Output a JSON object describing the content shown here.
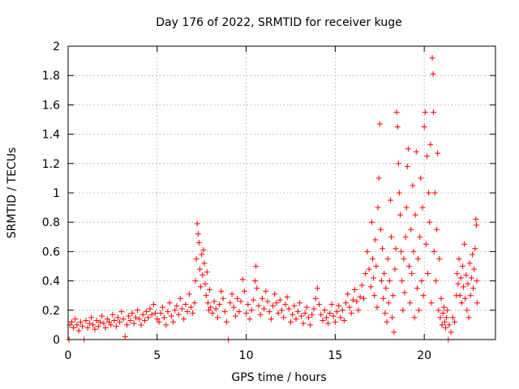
{
  "chart_data": {
    "type": "scatter",
    "title": "Day 176 of 2022, SRMTID for receiver kuge",
    "xlabel": "GPS time / hours",
    "ylabel": "SRMTID / TECUs",
    "xlim": [
      0,
      24
    ],
    "ylim": [
      0,
      2
    ],
    "xticks": [
      0,
      5,
      10,
      15,
      20
    ],
    "xtick_labels": [
      "0",
      "5",
      "10",
      "15",
      "20"
    ],
    "yticks": [
      0,
      0.2,
      0.4,
      0.6,
      0.8,
      1,
      1.2,
      1.4,
      1.6,
      1.8,
      2
    ],
    "ytick_labels": [
      "0",
      "0.2",
      "0.4",
      "0.6",
      "0.8",
      "1",
      "1.2",
      "1.4",
      "1.6",
      "1.8",
      "2"
    ],
    "grid": true,
    "marker": "+",
    "series": [
      {
        "name": "SRMTID",
        "color": "#ff0000",
        "points": [
          [
            0.05,
            0.0
          ],
          [
            0.1,
            0.1
          ],
          [
            0.2,
            0.12
          ],
          [
            0.3,
            0.08
          ],
          [
            0.4,
            0.14
          ],
          [
            0.5,
            0.1
          ],
          [
            0.6,
            0.06
          ],
          [
            0.7,
            0.12
          ],
          [
            0.8,
            0.09
          ],
          [
            0.9,
            0.0
          ],
          [
            1.0,
            0.13
          ],
          [
            1.1,
            0.08
          ],
          [
            1.2,
            0.11
          ],
          [
            1.3,
            0.15
          ],
          [
            1.4,
            0.1
          ],
          [
            1.5,
            0.07
          ],
          [
            1.6,
            0.13
          ],
          [
            1.7,
            0.09
          ],
          [
            1.8,
            0.12
          ],
          [
            1.9,
            0.16
          ],
          [
            2.0,
            0.11
          ],
          [
            2.1,
            0.08
          ],
          [
            2.2,
            0.14
          ],
          [
            2.3,
            0.12
          ],
          [
            2.4,
            0.1
          ],
          [
            2.5,
            0.17
          ],
          [
            2.6,
            0.13
          ],
          [
            2.7,
            0.09
          ],
          [
            2.8,
            0.15
          ],
          [
            2.9,
            0.12
          ],
          [
            3.0,
            0.19
          ],
          [
            3.1,
            0.14
          ],
          [
            3.2,
            0.02
          ],
          [
            3.3,
            0.1
          ],
          [
            3.4,
            0.16
          ],
          [
            3.5,
            0.13
          ],
          [
            3.6,
            0.18
          ],
          [
            3.7,
            0.11
          ],
          [
            3.8,
            0.15
          ],
          [
            3.9,
            0.2
          ],
          [
            4.0,
            0.14
          ],
          [
            4.1,
            0.1
          ],
          [
            4.2,
            0.17
          ],
          [
            4.3,
            0.13
          ],
          [
            4.4,
            0.19
          ],
          [
            4.5,
            0.15
          ],
          [
            4.6,
            0.21
          ],
          [
            4.7,
            0.17
          ],
          [
            4.8,
            0.24
          ],
          [
            4.9,
            0.18
          ],
          [
            5.0,
            0.14
          ],
          [
            5.1,
            0.12
          ],
          [
            5.2,
            0.18
          ],
          [
            5.3,
            0.22
          ],
          [
            5.4,
            0.15
          ],
          [
            5.5,
            0.1
          ],
          [
            5.6,
            0.19
          ],
          [
            5.7,
            0.25
          ],
          [
            5.8,
            0.16
          ],
          [
            5.9,
            0.12
          ],
          [
            6.0,
            0.2
          ],
          [
            6.1,
            0.23
          ],
          [
            6.2,
            0.17
          ],
          [
            6.3,
            0.28
          ],
          [
            6.4,
            0.21
          ],
          [
            6.5,
            0.14
          ],
          [
            6.6,
            0.24
          ],
          [
            6.7,
            0.19
          ],
          [
            6.8,
            0.31
          ],
          [
            6.9,
            0.22
          ],
          [
            7.0,
            0.18
          ],
          [
            7.1,
            0.25
          ],
          [
            7.15,
            0.4
          ],
          [
            7.2,
            0.55
          ],
          [
            7.25,
            0.79
          ],
          [
            7.3,
            0.72
          ],
          [
            7.35,
            0.66
          ],
          [
            7.4,
            0.48
          ],
          [
            7.45,
            0.36
          ],
          [
            7.5,
            0.58
          ],
          [
            7.55,
            0.44
          ],
          [
            7.6,
            0.61
          ],
          [
            7.65,
            0.52
          ],
          [
            7.7,
            0.38
          ],
          [
            7.75,
            0.3
          ],
          [
            7.8,
            0.46
          ],
          [
            7.85,
            0.25
          ],
          [
            7.9,
            0.2
          ],
          [
            7.95,
            0.34
          ],
          [
            8.0,
            0.22
          ],
          [
            8.1,
            0.18
          ],
          [
            8.2,
            0.26
          ],
          [
            8.3,
            0.21
          ],
          [
            8.4,
            0.15
          ],
          [
            8.5,
            0.24
          ],
          [
            8.6,
            0.33
          ],
          [
            8.7,
            0.28
          ],
          [
            8.8,
            0.19
          ],
          [
            8.9,
            0.12
          ],
          [
            9.0,
            0.0
          ],
          [
            9.1,
            0.25
          ],
          [
            9.2,
            0.31
          ],
          [
            9.3,
            0.22
          ],
          [
            9.4,
            0.16
          ],
          [
            9.5,
            0.28
          ],
          [
            9.6,
            0.19
          ],
          [
            9.7,
            0.26
          ],
          [
            9.8,
            0.41
          ],
          [
            9.9,
            0.33
          ],
          [
            10.0,
            0.18
          ],
          [
            10.1,
            0.24
          ],
          [
            10.2,
            0.14
          ],
          [
            10.3,
            0.2
          ],
          [
            10.4,
            0.27
          ],
          [
            10.5,
            0.4
          ],
          [
            10.55,
            0.5
          ],
          [
            10.6,
            0.35
          ],
          [
            10.7,
            0.23
          ],
          [
            10.8,
            0.17
          ],
          [
            10.9,
            0.28
          ],
          [
            11.0,
            0.21
          ],
          [
            11.1,
            0.33
          ],
          [
            11.2,
            0.26
          ],
          [
            11.3,
            0.19
          ],
          [
            11.4,
            0.14
          ],
          [
            11.5,
            0.23
          ],
          [
            11.6,
            0.31
          ],
          [
            11.7,
            0.25
          ],
          [
            11.8,
            0.18
          ],
          [
            11.9,
            0.27
          ],
          [
            12.0,
            0.2
          ],
          [
            12.1,
            0.15
          ],
          [
            12.2,
            0.24
          ],
          [
            12.3,
            0.29
          ],
          [
            12.4,
            0.21
          ],
          [
            12.5,
            0.12
          ],
          [
            12.6,
            0.17
          ],
          [
            12.7,
            0.23
          ],
          [
            12.8,
            0.14
          ],
          [
            12.9,
            0.19
          ],
          [
            13.0,
            0.25
          ],
          [
            13.1,
            0.16
          ],
          [
            13.2,
            0.11
          ],
          [
            13.3,
            0.18
          ],
          [
            13.4,
            0.22
          ],
          [
            13.5,
            0.15
          ],
          [
            13.6,
            0.1
          ],
          [
            13.7,
            0.17
          ],
          [
            13.8,
            0.21
          ],
          [
            13.9,
            0.28
          ],
          [
            14.0,
            0.35
          ],
          [
            14.1,
            0.24
          ],
          [
            14.2,
            0.17
          ],
          [
            14.3,
            0.13
          ],
          [
            14.4,
            0.2
          ],
          [
            14.5,
            0.15
          ],
          [
            14.6,
            0.11
          ],
          [
            14.7,
            0.18
          ],
          [
            14.8,
            0.24
          ],
          [
            14.9,
            0.16
          ],
          [
            15.0,
            0.12
          ],
          [
            15.1,
            0.19
          ],
          [
            15.2,
            0.23
          ],
          [
            15.3,
            0.15
          ],
          [
            15.4,
            0.2
          ],
          [
            15.5,
            0.13
          ],
          [
            15.6,
            0.25
          ],
          [
            15.7,
            0.31
          ],
          [
            15.8,
            0.22
          ],
          [
            15.9,
            0.18
          ],
          [
            16.0,
            0.27
          ],
          [
            16.1,
            0.34
          ],
          [
            16.2,
            0.26
          ],
          [
            16.3,
            0.2
          ],
          [
            16.4,
            0.29
          ],
          [
            16.5,
            0.37
          ],
          [
            16.6,
            0.28
          ],
          [
            16.7,
            0.45
          ],
          [
            16.8,
            0.6
          ],
          [
            16.9,
            0.48
          ],
          [
            17.0,
            0.36
          ],
          [
            17.05,
            0.8
          ],
          [
            17.1,
            0.55
          ],
          [
            17.15,
            0.42
          ],
          [
            17.2,
            0.3
          ],
          [
            17.25,
            0.68
          ],
          [
            17.3,
            0.5
          ],
          [
            17.35,
            0.22
          ],
          [
            17.4,
            0.9
          ],
          [
            17.45,
            1.1
          ],
          [
            17.5,
            1.47
          ],
          [
            17.55,
            0.75
          ],
          [
            17.6,
            0.4
          ],
          [
            17.65,
            0.62
          ],
          [
            17.7,
            0.28
          ],
          [
            17.75,
            0.45
          ],
          [
            17.8,
            0.18
          ],
          [
            17.85,
            0.35
          ],
          [
            17.9,
            0.12
          ],
          [
            17.95,
            0.55
          ],
          [
            18.0,
            0.25
          ],
          [
            18.05,
            0.4
          ],
          [
            18.1,
            0.95
          ],
          [
            18.15,
            0.7
          ],
          [
            18.2,
            0.15
          ],
          [
            18.25,
            0.3
          ],
          [
            18.3,
            0.05
          ],
          [
            18.35,
            0.48
          ],
          [
            18.4,
            0.62
          ],
          [
            18.45,
            1.55
          ],
          [
            18.5,
            1.45
          ],
          [
            18.55,
            1.2
          ],
          [
            18.6,
            1.0
          ],
          [
            18.65,
            0.85
          ],
          [
            18.7,
            0.6
          ],
          [
            18.75,
            0.4
          ],
          [
            18.8,
            0.2
          ],
          [
            18.85,
            0.55
          ],
          [
            18.9,
            0.32
          ],
          [
            18.95,
            0.7
          ],
          [
            19.0,
            0.9
          ],
          [
            19.05,
            1.18
          ],
          [
            19.1,
            1.3
          ],
          [
            19.15,
            0.5
          ],
          [
            19.2,
            0.25
          ],
          [
            19.25,
            0.75
          ],
          [
            19.3,
            0.45
          ],
          [
            19.35,
            1.05
          ],
          [
            19.4,
            0.6
          ],
          [
            19.45,
            0.15
          ],
          [
            19.5,
            0.85
          ],
          [
            19.55,
            1.28
          ],
          [
            19.6,
            0.35
          ],
          [
            19.65,
            0.55
          ],
          [
            19.7,
            0.2
          ],
          [
            19.75,
            0.7
          ],
          [
            19.8,
            1.1
          ],
          [
            19.85,
            0.4
          ],
          [
            19.9,
            0.9
          ],
          [
            19.95,
            0.3
          ],
          [
            20.0,
            1.45
          ],
          [
            20.05,
            1.55
          ],
          [
            20.1,
            0.65
          ],
          [
            20.15,
            1.25
          ],
          [
            20.2,
            0.45
          ],
          [
            20.25,
            1.0
          ],
          [
            20.3,
            0.8
          ],
          [
            20.35,
            1.33
          ],
          [
            20.4,
            0.25
          ],
          [
            20.45,
            1.92
          ],
          [
            20.5,
            1.81
          ],
          [
            20.52,
            1.55
          ],
          [
            20.55,
            0.6
          ],
          [
            20.6,
            1.0
          ],
          [
            20.65,
            0.4
          ],
          [
            20.7,
            0.75
          ],
          [
            20.75,
            1.27
          ],
          [
            20.8,
            0.2
          ],
          [
            20.85,
            0.55
          ],
          [
            20.9,
            0.15
          ],
          [
            20.95,
            0.28
          ],
          [
            21.0,
            0.1
          ],
          [
            21.05,
            0.18
          ],
          [
            21.1,
            0.22
          ],
          [
            21.15,
            0.12
          ],
          [
            21.2,
            0.08
          ],
          [
            21.25,
            0.15
          ],
          [
            21.3,
            0.2
          ],
          [
            21.35,
            0.0
          ],
          [
            21.4,
            0.1
          ],
          [
            21.5,
            0.05
          ],
          [
            21.6,
            0.15
          ],
          [
            21.7,
            0.12
          ],
          [
            21.8,
            0.3
          ],
          [
            21.85,
            0.45
          ],
          [
            21.9,
            0.38
          ],
          [
            21.95,
            0.55
          ],
          [
            22.0,
            0.3
          ],
          [
            22.05,
            0.42
          ],
          [
            22.1,
            0.25
          ],
          [
            22.15,
            0.5
          ],
          [
            22.2,
            0.36
          ],
          [
            22.25,
            0.65
          ],
          [
            22.3,
            0.28
          ],
          [
            22.35,
            0.44
          ],
          [
            22.4,
            0.2
          ],
          [
            22.45,
            0.38
          ],
          [
            22.5,
            0.15
          ],
          [
            22.55,
            0.52
          ],
          [
            22.6,
            0.3
          ],
          [
            22.65,
            0.42
          ],
          [
            22.7,
            0.58
          ],
          [
            22.75,
            0.35
          ],
          [
            22.8,
            0.48
          ],
          [
            22.85,
            0.62
          ],
          [
            22.9,
            0.82
          ],
          [
            22.93,
            0.78
          ],
          [
            22.95,
            0.4
          ],
          [
            22.97,
            0.25
          ]
        ]
      }
    ]
  }
}
